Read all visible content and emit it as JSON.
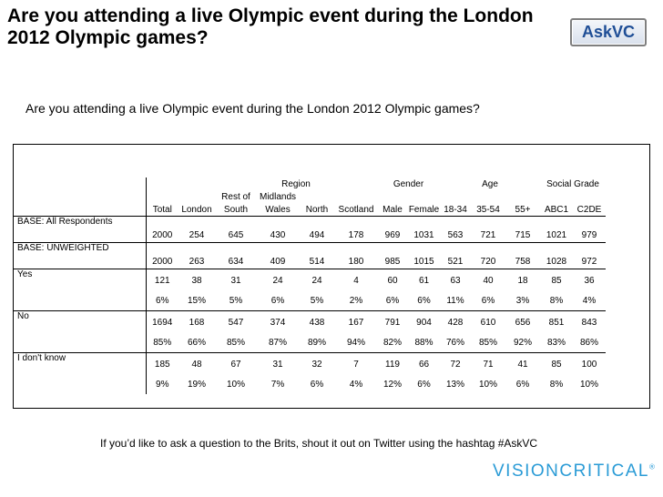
{
  "title": "Are you attending a live Olympic event during the London 2012 Olympic games?",
  "badge": "AskVC",
  "question": "Are you attending a live Olympic event during the London 2012 Olympic games?",
  "table": {
    "group_headers": {
      "region": "Region",
      "gender": "Gender",
      "age": "Age",
      "social_grade": "Social Grade"
    },
    "columns": [
      "Total",
      "London",
      "Rest of South",
      "Midlands Wales",
      "North",
      "Scotland",
      "Male",
      "Female",
      "18-34",
      "35-54",
      "55+",
      "ABC1",
      "C2DE"
    ],
    "column_line1": [
      "",
      "",
      "Rest of",
      "Midlands",
      "",
      "",
      "",
      "",
      "",
      "",
      "",
      "",
      ""
    ],
    "column_line2": [
      "Total",
      "London",
      "South",
      "Wales",
      "North",
      "Scotland",
      "Male",
      "Female",
      "18-34",
      "35-54",
      "55+",
      "ABC1",
      "C2DE"
    ],
    "base_all": {
      "label": "BASE: All Respondents",
      "values": [
        "2000",
        "254",
        "645",
        "430",
        "494",
        "178",
        "969",
        "1031",
        "563",
        "721",
        "715",
        "1021",
        "979"
      ]
    },
    "base_unweighted": {
      "label": "BASE: UNWEIGHTED",
      "values": [
        "2000",
        "263",
        "634",
        "409",
        "514",
        "180",
        "985",
        "1015",
        "521",
        "720",
        "758",
        "1028",
        "972"
      ]
    },
    "rows": [
      {
        "label": "Yes",
        "counts": [
          "121",
          "38",
          "31",
          "24",
          "24",
          "4",
          "60",
          "61",
          "63",
          "40",
          "18",
          "85",
          "36"
        ],
        "pcts": [
          "6%",
          "15%",
          "5%",
          "6%",
          "5%",
          "2%",
          "6%",
          "6%",
          "11%",
          "6%",
          "3%",
          "8%",
          "4%"
        ]
      },
      {
        "label": "No",
        "counts": [
          "1694",
          "168",
          "547",
          "374",
          "438",
          "167",
          "791",
          "904",
          "428",
          "610",
          "656",
          "851",
          "843"
        ],
        "pcts": [
          "85%",
          "66%",
          "85%",
          "87%",
          "89%",
          "94%",
          "82%",
          "88%",
          "76%",
          "85%",
          "92%",
          "83%",
          "86%"
        ]
      },
      {
        "label": "I don't know",
        "counts": [
          "185",
          "48",
          "67",
          "31",
          "32",
          "7",
          "119",
          "66",
          "72",
          "71",
          "41",
          "85",
          "100"
        ],
        "pcts": [
          "9%",
          "19%",
          "10%",
          "7%",
          "6%",
          "4%",
          "12%",
          "6%",
          "13%",
          "10%",
          "6%",
          "8%",
          "10%"
        ]
      }
    ]
  },
  "footer": "If you’d like to ask a question to the Brits, shout it out on Twitter using the hashtag #AskVC",
  "logo": {
    "text": "VISIONCRITICAL",
    "mark": "®",
    "color": "#2a9bd6"
  }
}
